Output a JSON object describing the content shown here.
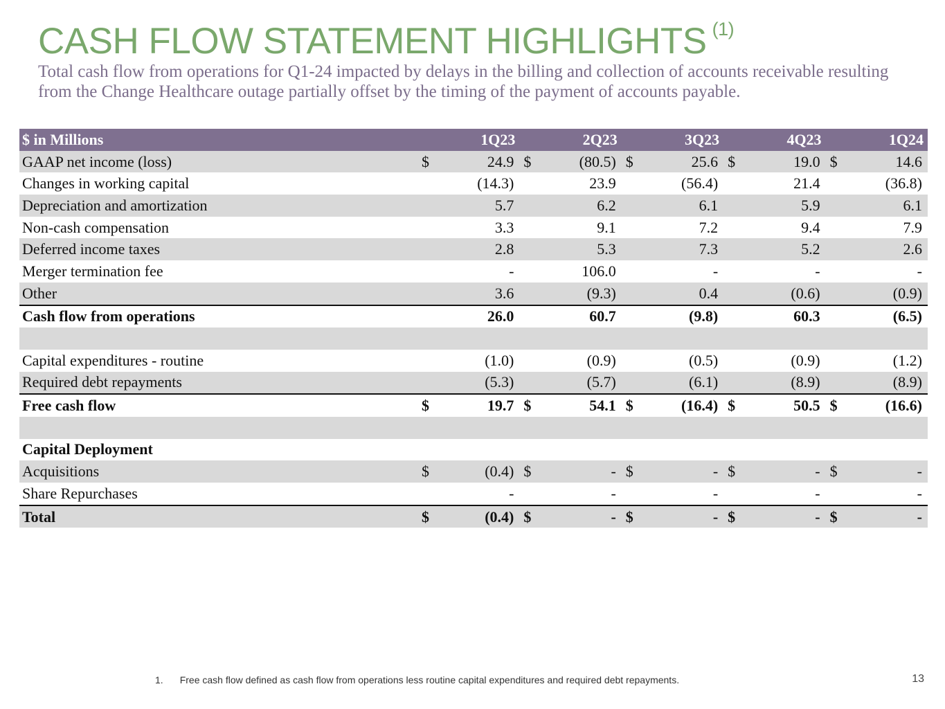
{
  "title": "CASH FLOW STATEMENT HIGHLIGHTS",
  "title_note": "(1)",
  "subtitle": "Total cash flow from operations for Q1-24 impacted by delays in the billing and collection of accounts receivable resulting from the Change Healthcare outage partially offset by the timing of the payment of accounts payable.",
  "table": {
    "unit_label": "$ in Millions",
    "columns": [
      "1Q23",
      "2Q23",
      "3Q23",
      "4Q23",
      "1Q24"
    ],
    "rows": [
      {
        "label": "GAAP net income (loss)",
        "values": [
          "24.9",
          "(80.5)",
          "25.6",
          "19.0",
          "14.6"
        ],
        "currency": [
          "$",
          "$",
          "$",
          "$",
          "$"
        ],
        "bold": false,
        "shaded": true,
        "top_border": false
      },
      {
        "label": "Changes in working capital",
        "values": [
          "(14.3)",
          "23.9",
          "(56.4)",
          "21.4",
          "(36.8)"
        ],
        "currency": [
          "",
          "",
          "",
          "",
          ""
        ],
        "bold": false,
        "shaded": false,
        "top_border": false
      },
      {
        "label": "Depreciation and amortization",
        "values": [
          "5.7",
          "6.2",
          "6.1",
          "5.9",
          "6.1"
        ],
        "currency": [
          "",
          "",
          "",
          "",
          ""
        ],
        "bold": false,
        "shaded": true,
        "top_border": false
      },
      {
        "label": "Non-cash compensation",
        "values": [
          "3.3",
          "9.1",
          "7.2",
          "9.4",
          "7.9"
        ],
        "currency": [
          "",
          "",
          "",
          "",
          ""
        ],
        "bold": false,
        "shaded": false,
        "top_border": false
      },
      {
        "label": "Deferred income taxes",
        "values": [
          "2.8",
          "5.3",
          "7.3",
          "5.2",
          "2.6"
        ],
        "currency": [
          "",
          "",
          "",
          "",
          ""
        ],
        "bold": false,
        "shaded": true,
        "top_border": false
      },
      {
        "label": "Merger termination fee",
        "values": [
          "-",
          "106.0",
          "-",
          "-",
          "-"
        ],
        "currency": [
          "",
          "",
          "",
          "",
          ""
        ],
        "bold": false,
        "shaded": false,
        "top_border": false
      },
      {
        "label": "Other",
        "values": [
          "3.6",
          "(9.3)",
          "0.4",
          "(0.6)",
          "(0.9)"
        ],
        "currency": [
          "",
          "",
          "",
          "",
          ""
        ],
        "bold": false,
        "shaded": true,
        "top_border": false
      },
      {
        "label": "Cash flow from operations",
        "values": [
          "26.0",
          "60.7",
          "(9.8)",
          "60.3",
          "(6.5)"
        ],
        "currency": [
          "",
          "",
          "",
          "",
          ""
        ],
        "bold": true,
        "shaded": false,
        "top_border": true
      },
      {
        "label": "",
        "values": [
          "",
          "",
          "",
          "",
          ""
        ],
        "currency": [
          "",
          "",
          "",
          "",
          ""
        ],
        "bold": false,
        "shaded": true,
        "top_border": false
      },
      {
        "label": "Capital expenditures - routine",
        "values": [
          "(1.0)",
          "(0.9)",
          "(0.5)",
          "(0.9)",
          "(1.2)"
        ],
        "currency": [
          "",
          "",
          "",
          "",
          ""
        ],
        "bold": false,
        "shaded": false,
        "top_border": false
      },
      {
        "label": "Required debt repayments",
        "values": [
          "(5.3)",
          "(5.7)",
          "(6.1)",
          "(8.9)",
          "(8.9)"
        ],
        "currency": [
          "",
          "",
          "",
          "",
          ""
        ],
        "bold": false,
        "shaded": true,
        "top_border": false
      },
      {
        "label": "Free cash flow",
        "values": [
          "19.7",
          "54.1",
          "(16.4)",
          "50.5",
          "(16.6)"
        ],
        "currency": [
          "$",
          "$",
          "$",
          "$",
          "$"
        ],
        "bold": true,
        "shaded": false,
        "top_border": true
      },
      {
        "label": "",
        "values": [
          "",
          "",
          "",
          "",
          ""
        ],
        "currency": [
          "",
          "",
          "",
          "",
          ""
        ],
        "bold": false,
        "shaded": true,
        "top_border": false
      },
      {
        "label": "Capital Deployment",
        "values": [
          "",
          "",
          "",
          "",
          ""
        ],
        "currency": [
          "",
          "",
          "",
          "",
          ""
        ],
        "bold": true,
        "shaded": false,
        "top_border": false
      },
      {
        "label": "Acquisitions",
        "values": [
          "(0.4)",
          "-",
          "-",
          "-",
          "-"
        ],
        "currency": [
          "$",
          "$",
          "$",
          "$",
          "$"
        ],
        "bold": false,
        "shaded": true,
        "top_border": false
      },
      {
        "label": "Share Repurchases",
        "values": [
          "-",
          "-",
          "-",
          "-",
          "-"
        ],
        "currency": [
          "",
          "",
          "",
          "",
          ""
        ],
        "bold": false,
        "shaded": false,
        "top_border": false
      },
      {
        "label": "Total",
        "values": [
          "(0.4)",
          "-",
          "-",
          "-",
          "-"
        ],
        "currency": [
          "$",
          "$",
          "$",
          "$",
          "$"
        ],
        "bold": true,
        "shaded": true,
        "top_border": true
      }
    ]
  },
  "footnote": {
    "number": "1.",
    "text": "Free cash flow defined as cash flow from operations less routine capital expenditures and required debt repayments."
  },
  "page_number": "13"
}
